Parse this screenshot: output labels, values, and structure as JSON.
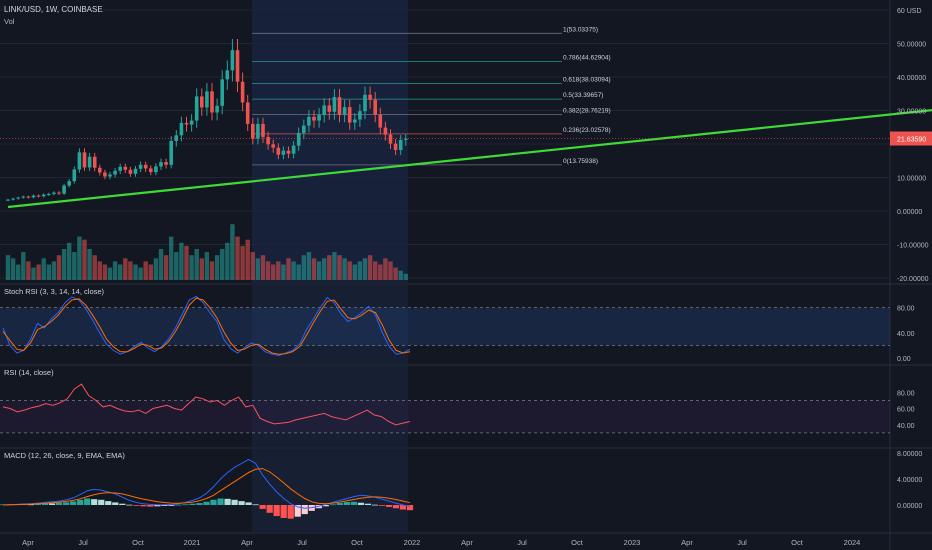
{
  "header": {
    "symbol_line": "LINK/USD, 1W, COINBASE",
    "volume_label": "Vol"
  },
  "price_scale": {
    "currency_label": "USD",
    "current_price_label": "21.63590",
    "current_price": 21.6359
  },
  "colors": {
    "background": "#131722",
    "up": "#26a69a",
    "down": "#ef5350",
    "trendline": "#3fda37",
    "axis_text": "#b2b5be",
    "grid": "#1f2533",
    "stoch_k": "#2962ff",
    "stoch_d": "#ff6d00",
    "rsi_line": "#f7525f",
    "macd_line": "#2962ff",
    "signal_line": "#ff6d00",
    "fib_line": "#787b86",
    "stoch_band": "#1f3a6a",
    "rsi_band": "#2a2040"
  },
  "chart_data": [
    {
      "type": "candlestick",
      "title": "LINK/USD, 1W, COINBASE",
      "ylabel": "USD",
      "x_axis_labels": [
        "Apr",
        "Jul",
        "Oct",
        "2021",
        "Apr",
        "Jul",
        "Oct",
        "2022",
        "Apr",
        "Jul",
        "Oct",
        "2023",
        "Apr",
        "Jul",
        "Oct",
        "2024"
      ],
      "y_ticks": [
        "60 USD",
        "50.00000",
        "40.00000",
        "30.00000",
        "20.00000",
        "10.00000",
        "0.00000",
        "-10.00000",
        "-20.00000"
      ],
      "ylim": [
        -20,
        60
      ],
      "candles_close": [
        3.4,
        3.7,
        4.0,
        4.3,
        4.1,
        4.6,
        4.4,
        4.9,
        5.1,
        5.5,
        5.2,
        7.6,
        8.9,
        12.4,
        17.5,
        13.0,
        16.2,
        12.9,
        11.5,
        10.3,
        10.9,
        12.0,
        13.2,
        12.3,
        11.1,
        12.6,
        13.8,
        12.7,
        11.6,
        13.3,
        14.6,
        13.8,
        20.9,
        22.6,
        26.3,
        25.8,
        27.0,
        34.2,
        30.9,
        35.7,
        29.4,
        31.4,
        39.3,
        42.0,
        48.0,
        38.6,
        32.4,
        26.0,
        21.6,
        26.0,
        22.1,
        19.9,
        18.9,
        16.8,
        18.0,
        17.1,
        19.5,
        23.3,
        25.5,
        28.1,
        27.0,
        28.7,
        31.5,
        29.6,
        34.0,
        28.8,
        31.0,
        26.4,
        27.3,
        29.8,
        34.7,
        33.2,
        28.8,
        24.9,
        22.8,
        20.1,
        18.2,
        21.2,
        21.6
      ],
      "volume": [
        8,
        7,
        5,
        9,
        6,
        4,
        5,
        7,
        5,
        6,
        8,
        10,
        12,
        9,
        14,
        13,
        10,
        8,
        6,
        5,
        4,
        6,
        5,
        7,
        6,
        5,
        4,
        6,
        5,
        7,
        10,
        8,
        14,
        9,
        12,
        11,
        8,
        10,
        7,
        9,
        6,
        8,
        10,
        12,
        18,
        14,
        11,
        13,
        9,
        7,
        8,
        6,
        5,
        6,
        5,
        7,
        6,
        5,
        8,
        9,
        7,
        6,
        7,
        8,
        9,
        8,
        7,
        6,
        5,
        6,
        7,
        8,
        6,
        5,
        7,
        6,
        4,
        3,
        2
      ],
      "trendline": [
        [
          0,
          1.2
        ],
        [
          240,
          39.5
        ]
      ],
      "fibonacci_retracement": [
        {
          "ratio": "1",
          "value": 53.03375,
          "label": "1(53.03375)"
        },
        {
          "ratio": "0.786",
          "value": 44.62904,
          "label": "0.786(44.62904)"
        },
        {
          "ratio": "0.618",
          "value": 38.03094,
          "label": "0.618(38.03094)"
        },
        {
          "ratio": "0.5",
          "value": 33.39657,
          "label": "0.5(33.39657)"
        },
        {
          "ratio": "0.382",
          "value": 28.76219,
          "label": "0.382(28.76219)"
        },
        {
          "ratio": "0.236",
          "value": 23.02578,
          "label": "0.236(23.02578)"
        },
        {
          "ratio": "0",
          "value": 13.75938,
          "label": "0(13.75938)"
        }
      ]
    },
    {
      "type": "line",
      "title": "Stoch RSI (3, 3, 14, 14, close)",
      "y_ticks": [
        "80.00",
        "40.00",
        "0.00"
      ],
      "ylim": [
        0,
        100
      ],
      "band": [
        20,
        80
      ],
      "series": [
        {
          "name": "K",
          "values": [
            48,
            20,
            8,
            12,
            30,
            55,
            48,
            62,
            72,
            88,
            97,
            92,
            78,
            60,
            40,
            22,
            12,
            6,
            10,
            18,
            25,
            16,
            10,
            18,
            30,
            48,
            70,
            92,
            98,
            88,
            72,
            58,
            30,
            15,
            8,
            16,
            24,
            20,
            10,
            6,
            4,
            8,
            12,
            22,
            45,
            62,
            80,
            96,
            88,
            70,
            58,
            64,
            72,
            82,
            68,
            40,
            18,
            6,
            8,
            14
          ]
        },
        {
          "name": "D",
          "values": [
            42,
            28,
            14,
            12,
            24,
            45,
            50,
            58,
            68,
            82,
            92,
            94,
            84,
            68,
            50,
            30,
            18,
            10,
            10,
            15,
            22,
            20,
            14,
            16,
            26,
            42,
            62,
            84,
            95,
            92,
            80,
            64,
            42,
            24,
            12,
            14,
            20,
            22,
            14,
            8,
            6,
            7,
            10,
            18,
            36,
            56,
            74,
            90,
            92,
            78,
            64,
            62,
            68,
            76,
            72,
            52,
            28,
            12,
            8,
            10
          ]
        }
      ]
    },
    {
      "type": "line",
      "title": "RSI (14, close)",
      "y_ticks": [
        "80.00",
        "60.00",
        "40.00"
      ],
      "ylim": [
        20,
        100
      ],
      "band": [
        30,
        70
      ],
      "series": [
        {
          "name": "RSI",
          "values": [
            62,
            60,
            56,
            58,
            61,
            63,
            66,
            64,
            67,
            72,
            84,
            90,
            76,
            70,
            62,
            64,
            60,
            57,
            56,
            58,
            54,
            60,
            62,
            64,
            60,
            58,
            66,
            74,
            72,
            68,
            70,
            64,
            70,
            74,
            62,
            64,
            48,
            44,
            41,
            42,
            43,
            46,
            48,
            50,
            52,
            54,
            50,
            48,
            46,
            50,
            54,
            58,
            52,
            50,
            44,
            40,
            42,
            44
          ]
        }
      ]
    },
    {
      "type": "bar",
      "title": "MACD (12, 26, close, 9, EMA, EMA)",
      "y_ticks": [
        "8.00000",
        "4.00000",
        "0.00000"
      ],
      "ylim": [
        -2,
        8
      ],
      "series": [
        {
          "name": "Histogram",
          "values": [
            0.1,
            0.1,
            0.15,
            0.2,
            0.1,
            0.2,
            0.3,
            0.25,
            0.35,
            0.4,
            0.55,
            0.8,
            1.0,
            0.9,
            0.8,
            0.6,
            0.4,
            0.2,
            0.05,
            -0.1,
            -0.2,
            -0.25,
            -0.2,
            -0.15,
            -0.1,
            0.05,
            0.1,
            0.2,
            0.3,
            0.5,
            0.8,
            1.0,
            0.95,
            0.8,
            0.6,
            0.4,
            0.1,
            -0.6,
            -1.2,
            -1.7,
            -2.0,
            -2.1,
            -1.8,
            -1.4,
            -0.9,
            -0.5,
            -0.2,
            0.1,
            0.3,
            0.45,
            0.5,
            0.35,
            0.2,
            0.05,
            -0.1,
            -0.3,
            -0.5,
            -0.7,
            -0.8
          ]
        },
        {
          "name": "MACD",
          "values": [
            0.0,
            0.05,
            0.1,
            0.15,
            0.2,
            0.3,
            0.4,
            0.5,
            0.6,
            0.8,
            1.1,
            1.6,
            2.2,
            2.4,
            2.3,
            2.0,
            1.7,
            1.2,
            0.7,
            0.4,
            0.2,
            0.1,
            0.05,
            0.05,
            0.1,
            0.2,
            0.4,
            0.7,
            1.1,
            1.8,
            2.8,
            4.0,
            5.0,
            5.8,
            6.4,
            7.0,
            6.4,
            4.6,
            3.2,
            2.0,
            1.0,
            0.2,
            -0.3,
            -0.5,
            -0.4,
            -0.2,
            0.1,
            0.4,
            0.7,
            1.0,
            1.3,
            1.5,
            1.4,
            1.2,
            0.9,
            0.6,
            0.3,
            0.0,
            -0.2
          ]
        },
        {
          "name": "Signal",
          "values": [
            0.0,
            0.03,
            0.06,
            0.1,
            0.14,
            0.2,
            0.27,
            0.35,
            0.44,
            0.55,
            0.7,
            0.95,
            1.3,
            1.6,
            1.8,
            1.9,
            1.85,
            1.7,
            1.45,
            1.15,
            0.9,
            0.7,
            0.5,
            0.38,
            0.3,
            0.28,
            0.32,
            0.45,
            0.65,
            1.0,
            1.5,
            2.2,
            2.9,
            3.6,
            4.3,
            5.0,
            5.5,
            5.6,
            5.1,
            4.3,
            3.4,
            2.5,
            1.7,
            1.0,
            0.5,
            0.25,
            0.2,
            0.3,
            0.45,
            0.65,
            0.85,
            1.05,
            1.2,
            1.25,
            1.2,
            1.05,
            0.85,
            0.6,
            0.35
          ]
        }
      ]
    }
  ]
}
